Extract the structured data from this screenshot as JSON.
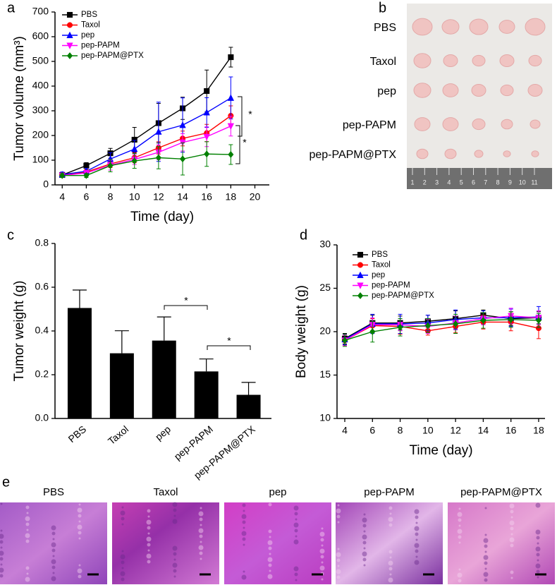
{
  "panel_labels": [
    "a",
    "b",
    "c",
    "d",
    "e"
  ],
  "chart_data": [
    {
      "type": "line",
      "xlabel": "Time (day)",
      "ylabel": "Tumor volume (mm³)",
      "x": [
        4,
        6,
        8,
        10,
        12,
        14,
        16,
        18
      ],
      "xlim": [
        3.4,
        21.2
      ],
      "xticks": [
        4,
        6,
        8,
        10,
        12,
        14,
        16,
        18,
        20
      ],
      "ylim": [
        0,
        700
      ],
      "yticks": [
        0,
        100,
        200,
        300,
        400,
        500,
        600,
        700
      ],
      "legend": "upper left",
      "annotations": [
        "*",
        "*"
      ],
      "series": [
        {
          "name": "PBS",
          "color": "#000000",
          "marker": "square",
          "values": [
            40,
            78,
            128,
            183,
            250,
            310,
            380,
            517
          ],
          "errors": [
            10,
            12,
            20,
            50,
            80,
            45,
            85,
            40
          ]
        },
        {
          "name": "Taxol",
          "color": "#ff0000",
          "marker": "circle",
          "values": [
            40,
            52,
            85,
            110,
            150,
            188,
            210,
            280
          ],
          "errors": [
            8,
            10,
            15,
            20,
            25,
            30,
            35,
            40
          ]
        },
        {
          "name": "pep",
          "color": "#0000ff",
          "marker": "triangle-up",
          "values": [
            42,
            55,
            105,
            145,
            215,
            242,
            293,
            352
          ],
          "errors": [
            10,
            12,
            25,
            35,
            120,
            110,
            60,
            85
          ]
        },
        {
          "name": "pep-PAPM",
          "color": "#ff00ff",
          "marker": "triangle-down",
          "values": [
            38,
            48,
            80,
            103,
            132,
            172,
            195,
            238
          ],
          "errors": [
            8,
            10,
            20,
            20,
            30,
            35,
            40,
            40
          ]
        },
        {
          "name": "pep-PAPM@PTX",
          "color": "#008000",
          "marker": "diamond",
          "values": [
            38,
            38,
            78,
            97,
            110,
            105,
            125,
            123
          ],
          "errors": [
            8,
            8,
            25,
            30,
            45,
            65,
            50,
            40
          ]
        }
      ]
    },
    {
      "type": "bar",
      "ylabel": "Tumor weight (g)",
      "categories": [
        "PBS",
        "Taxol",
        "pep",
        "pep-PAPM",
        "pep-PAPM@PTX"
      ],
      "values": [
        0.505,
        0.298,
        0.356,
        0.215,
        0.108
      ],
      "errors": [
        0.082,
        0.103,
        0.108,
        0.057,
        0.057
      ],
      "color": "#000000",
      "ylim": [
        0,
        0.8
      ],
      "yticks": [
        {
          "value": 0,
          "label": "0.0"
        },
        0.2,
        0.4,
        0.6,
        0.8
      ],
      "annotations": [
        "*",
        "*"
      ]
    },
    {
      "type": "line",
      "xlabel": "Time (day)",
      "ylabel": "Body weight (g)",
      "x": [
        4,
        6,
        8,
        10,
        12,
        14,
        16,
        18
      ],
      "xlim": [
        3.44,
        18.46
      ],
      "xticks": [
        4,
        6,
        8,
        10,
        12,
        14,
        16,
        18
      ],
      "ylim": [
        10,
        30
      ],
      "yticks": [
        10,
        15,
        20,
        25,
        30
      ],
      "legend": "upper left",
      "series": [
        {
          "name": "PBS",
          "color": "#000000",
          "marker": "square",
          "values": [
            19.2,
            21.0,
            21.0,
            21.2,
            21.5,
            21.9,
            21.5,
            21.6
          ],
          "errors": [
            0.6,
            0.9,
            0.8,
            0.7,
            0.9,
            0.6,
            0.8,
            0.7
          ]
        },
        {
          "name": "Taxol",
          "color": "#ff0000",
          "marker": "circle",
          "values": [
            19.0,
            20.7,
            20.6,
            20.1,
            20.6,
            21.1,
            21.1,
            20.4
          ],
          "errors": [
            0.6,
            0.8,
            0.9,
            0.5,
            0.7,
            0.8,
            1.0,
            1.2
          ]
        },
        {
          "name": "pep",
          "color": "#0000ff",
          "marker": "triangle-up",
          "values": [
            19.1,
            20.9,
            20.9,
            21.0,
            21.4,
            21.6,
            21.6,
            21.7
          ],
          "errors": [
            0.6,
            1.1,
            1.1,
            0.9,
            1.1,
            0.8,
            1.0,
            1.2
          ]
        },
        {
          "name": "pep-PAPM",
          "color": "#ff00ff",
          "marker": "triangle-down",
          "values": [
            19.0,
            20.8,
            20.8,
            20.6,
            21.0,
            21.5,
            21.8,
            21.6
          ],
          "errors": [
            0.6,
            0.8,
            0.7,
            0.8,
            0.8,
            0.7,
            0.9,
            0.8
          ]
        },
        {
          "name": "pep-PAPM@PTX",
          "color": "#008000",
          "marker": "diamond",
          "values": [
            19.0,
            20.0,
            20.5,
            20.7,
            20.9,
            21.3,
            21.4,
            21.3
          ],
          "errors": [
            0.7,
            1.2,
            1.0,
            0.8,
            1.1,
            0.9,
            0.9,
            0.8
          ]
        }
      ]
    }
  ],
  "photo": {
    "rows": [
      "PBS",
      "Taxol",
      "pep",
      "pep-PAPM",
      "pep-PAPM@PTX"
    ],
    "ruler": [
      "1",
      "2",
      "3",
      "4",
      "5",
      "6",
      "7",
      "8",
      "9",
      "10",
      "11"
    ]
  },
  "histology": {
    "titles": [
      "PBS",
      "Taxol",
      "pep",
      "pep-PAPM",
      "pep-PAPM@PTX"
    ]
  }
}
